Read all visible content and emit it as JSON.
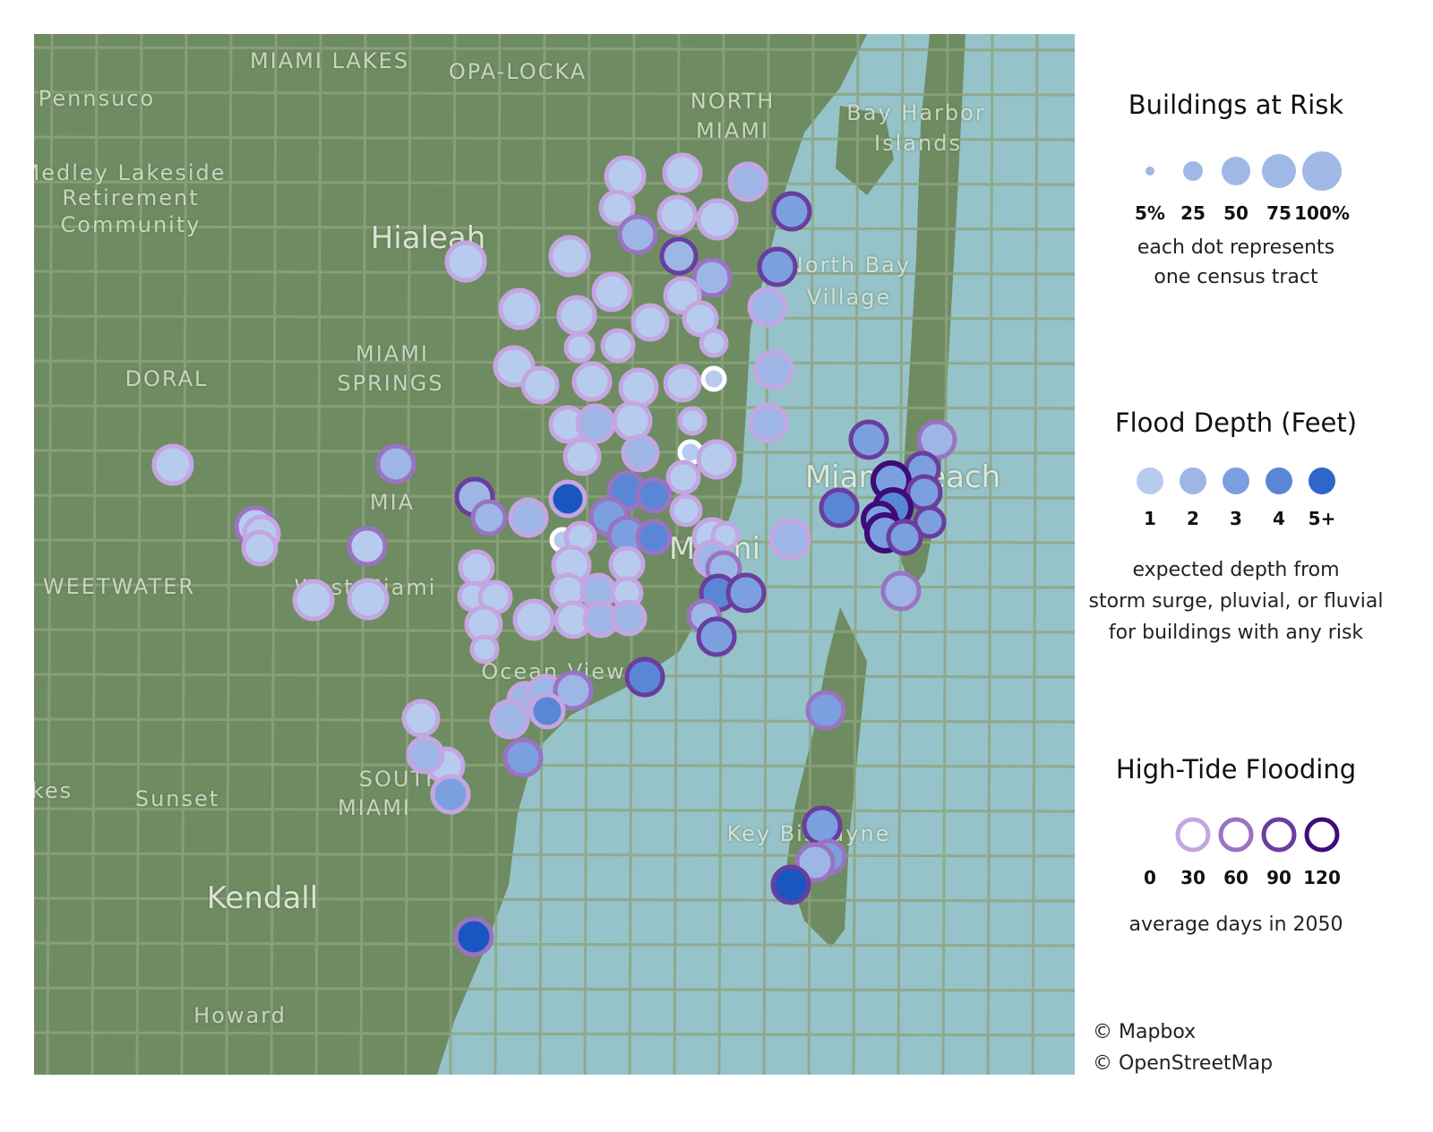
{
  "map": {
    "place_labels": [
      {
        "text": "MIAMI LAKES"
      },
      {
        "text": "OPA-LOCKA"
      },
      {
        "text": "Pennsuco"
      },
      {
        "text": "NORTH"
      },
      {
        "text": "MIAMI"
      },
      {
        "text": "Bay Harbor"
      },
      {
        "text": "Islands"
      },
      {
        "text": "Medley Lakeside"
      },
      {
        "text": "Retirement"
      },
      {
        "text": "Community"
      },
      {
        "text": "Hialeah"
      },
      {
        "text": "North Bay"
      },
      {
        "text": "Village"
      },
      {
        "text": "DORAL"
      },
      {
        "text": "MIAMI"
      },
      {
        "text": "SPRINGS"
      },
      {
        "text": "MIA"
      },
      {
        "text": "Miami Beach"
      },
      {
        "text": "WEETWATER"
      },
      {
        "text": "West Miami"
      },
      {
        "text": "Miami"
      },
      {
        "text": "Ocean View"
      },
      {
        "text": "SOUTH"
      },
      {
        "text": "MIAMI"
      },
      {
        "text": "Sunset"
      },
      {
        "text": "kes"
      },
      {
        "text": "Kendall"
      },
      {
        "text": "Key Biscayne"
      },
      {
        "text": "Howard"
      }
    ],
    "colors": {
      "land": "#6f8b62",
      "road": "#8ea57e",
      "water": "#95c3c9"
    }
  },
  "legend": {
    "size": {
      "title": "Buildings at Risk",
      "labels": [
        "5%",
        "25",
        "50",
        "75",
        "100%"
      ],
      "note1": "each dot represents",
      "note2": "one census tract",
      "color": "#9fb8e6"
    },
    "depth": {
      "title": "Flood Depth (Feet)",
      "labels": [
        "1",
        "2",
        "3",
        "4",
        "5+"
      ],
      "colors": [
        "#b7cbee",
        "#9db6e6",
        "#7c9fe0",
        "#5a86d6",
        "#2f66c9"
      ],
      "note1": "expected depth from",
      "note2": "storm surge, pluvial, or fluvial",
      "note3": "for buildings with any risk"
    },
    "tide": {
      "title": "High-Tide Flooding",
      "labels": [
        "0",
        "30",
        "60",
        "90",
        "120"
      ],
      "colors": [
        "#ffffff",
        "#c4a6e2",
        "#9a73c2",
        "#6a3d9f",
        "#3e0c79"
      ],
      "note": "average days in 2050"
    }
  },
  "attribution": {
    "mapbox": "© Mapbox",
    "osm": "© OpenStreetMap"
  }
}
